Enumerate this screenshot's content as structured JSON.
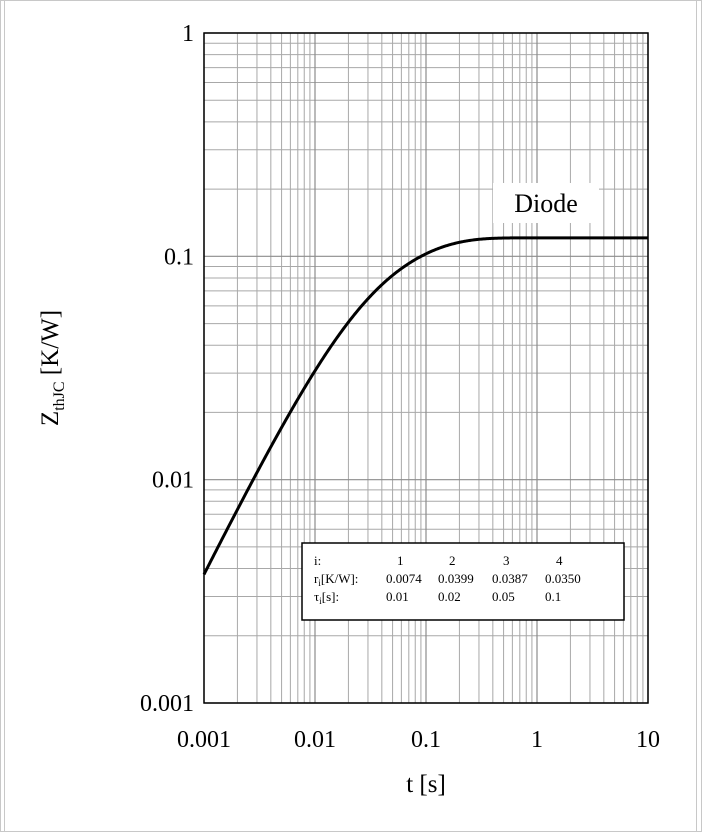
{
  "chart_data": {
    "type": "line",
    "xscale": "log",
    "yscale": "log",
    "xlim": [
      0.001,
      10
    ],
    "ylim": [
      0.001,
      1
    ],
    "grid": true,
    "xlabel": "t [s]",
    "ylabel": {
      "base": "Z",
      "sub": "thJC",
      "rest": " [K/W]"
    },
    "x_ticks": [
      "0.001",
      "0.01",
      "0.1",
      "1",
      "10"
    ],
    "y_ticks": [
      "0.001",
      "0.01",
      "0.1",
      "1"
    ],
    "series": [
      {
        "name": "Diode",
        "color": "#000000",
        "model": "foster",
        "r": [
          0.0074,
          0.0399,
          0.0387,
          0.035
        ],
        "tau": [
          0.01,
          0.02,
          0.05,
          0.1
        ]
      }
    ],
    "table": {
      "header": {
        "label": "i:",
        "values": [
          "1",
          "2",
          "3",
          "4"
        ]
      },
      "rows": [
        {
          "label_base": "r",
          "label_sub": "i",
          "label_rest": "[K/W]:",
          "values": [
            "0.0074",
            "0.0399",
            "0.0387",
            "0.0350"
          ]
        },
        {
          "label_base": "τ",
          "label_sub": "i",
          "label_rest": "[s]:",
          "values": [
            "0.01",
            "0.02",
            "0.05",
            "0.1"
          ]
        }
      ]
    }
  }
}
